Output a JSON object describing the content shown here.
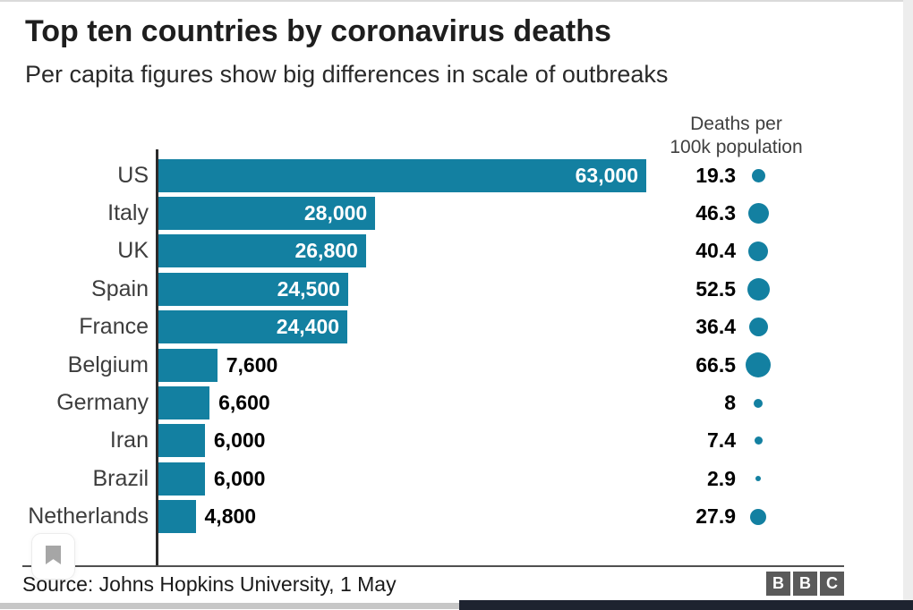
{
  "page": {
    "title": "Top ten countries by coronavirus deaths",
    "subtitle": "Per capita figures show big differences in scale of outbreaks"
  },
  "chart_data": {
    "type": "bar",
    "orientation": "horizontal",
    "title": "Top ten countries by coronavirus deaths",
    "subtitle": "Per capita figures show big differences in scale of outbreaks",
    "categories": [
      "US",
      "Italy",
      "UK",
      "Spain",
      "France",
      "Belgium",
      "Germany",
      "Iran",
      "Brazil",
      "Netherlands"
    ],
    "series": [
      {
        "name": "Total deaths",
        "values": [
          63000,
          28000,
          26800,
          24500,
          24400,
          7600,
          6600,
          6000,
          6000,
          4800
        ],
        "labels": [
          "63,000",
          "28,000",
          "26,800",
          "24,500",
          "24,400",
          "7,600",
          "6,600",
          "6,000",
          "6,000",
          "4,800"
        ],
        "label_inside_threshold": 20000
      },
      {
        "name": "Deaths per 100k population",
        "values": [
          19.3,
          46.3,
          40.4,
          52.5,
          36.4,
          66.5,
          8,
          7.4,
          2.9,
          27.9
        ],
        "labels": [
          "19.3",
          "46.3",
          "40.4",
          "52.5",
          "36.4",
          "66.5",
          "8",
          "7.4",
          "2.9",
          "27.9"
        ]
      }
    ],
    "xlim": [
      0,
      63000
    ],
    "grid": false,
    "legend_position": "none",
    "percap_header": {
      "line1": "Deaths per",
      "line2": "100k population"
    },
    "colors": {
      "bar": "#1380A1",
      "dot": "#1380A1",
      "axis": "#2b2b2b"
    }
  },
  "footer": {
    "source": "Source: Johns Hopkins University, 1 May",
    "logo_letters": [
      "B",
      "B",
      "C"
    ]
  }
}
